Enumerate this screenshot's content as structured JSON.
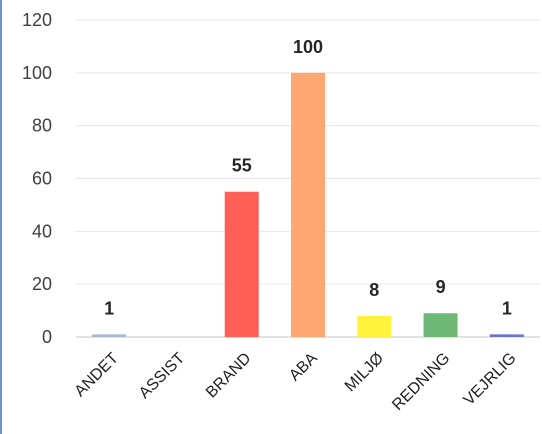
{
  "chart_data": {
    "type": "bar",
    "categories": [
      "ANDET",
      "ASSIST",
      "BRAND",
      "ABA",
      "MILJØ",
      "REDNING",
      "VEJRLIG"
    ],
    "values": [
      1,
      0,
      55,
      100,
      8,
      9,
      1
    ],
    "data_labels": [
      "1",
      "",
      "55",
      "100",
      "8",
      "9",
      "1"
    ],
    "bar_colors": [
      "#aab7d2",
      "#cccccc",
      "#ff5f57",
      "#ffa770",
      "#fff23a",
      "#70b878",
      "#6b74d4"
    ],
    "ylim": [
      0,
      120
    ],
    "yticks": [
      0,
      20,
      40,
      60,
      80,
      100,
      120
    ],
    "grid": true,
    "legend": "none"
  }
}
